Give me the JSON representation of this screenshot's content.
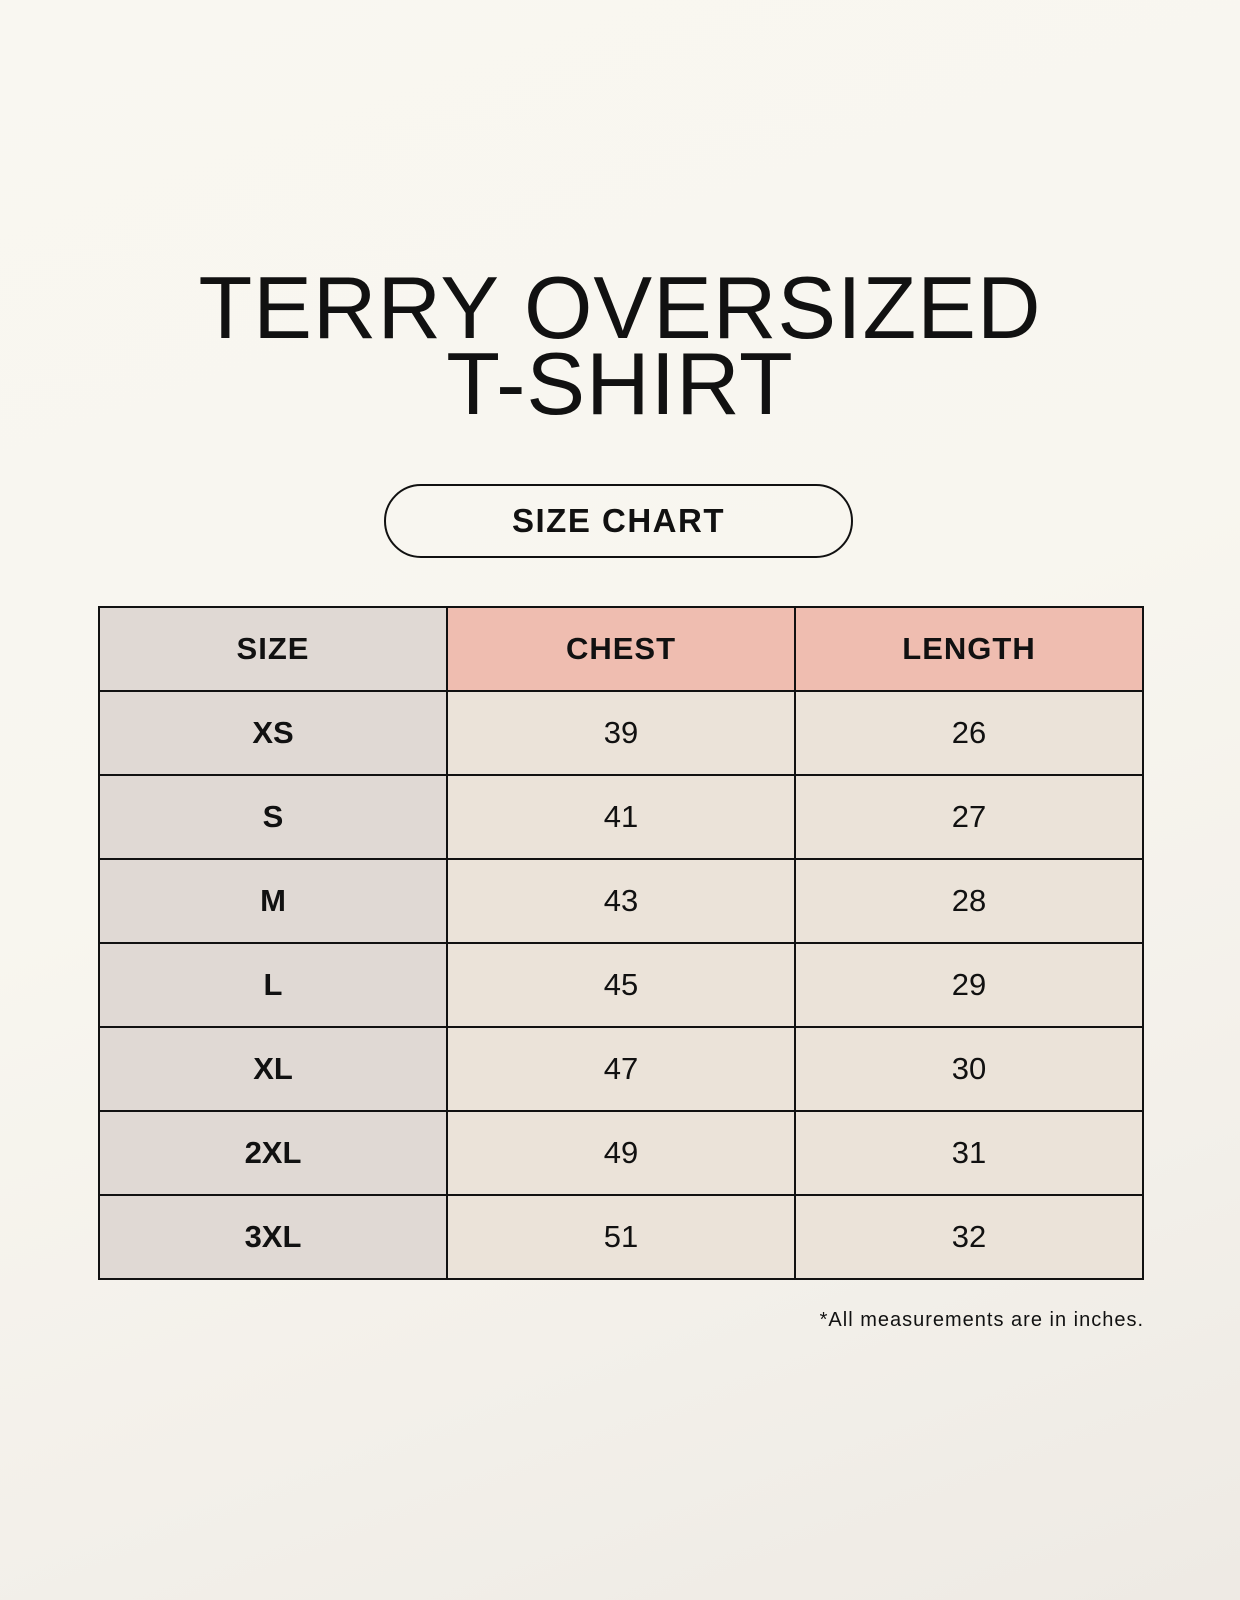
{
  "title": {
    "line1": "TERRY OVERSIZED",
    "line2": "T-SHIRT"
  },
  "subtitle": "SIZE CHART",
  "table": {
    "headers": [
      "SIZE",
      "CHEST",
      "LENGTH"
    ],
    "rows": [
      [
        "XS",
        "39",
        "26"
      ],
      [
        "S",
        "41",
        "27"
      ],
      [
        "M",
        "43",
        "28"
      ],
      [
        "L",
        "45",
        "29"
      ],
      [
        "XL",
        "47",
        "30"
      ],
      [
        "2XL",
        "49",
        "31"
      ],
      [
        "3XL",
        "51",
        "32"
      ]
    ]
  },
  "footnote": "*All measurements are in inches.",
  "colors": {
    "background": "#f8f6f0",
    "size_column": "#e0d9d4",
    "header_accent": "#efbdb0",
    "body_cells": "#ebe3d9"
  }
}
